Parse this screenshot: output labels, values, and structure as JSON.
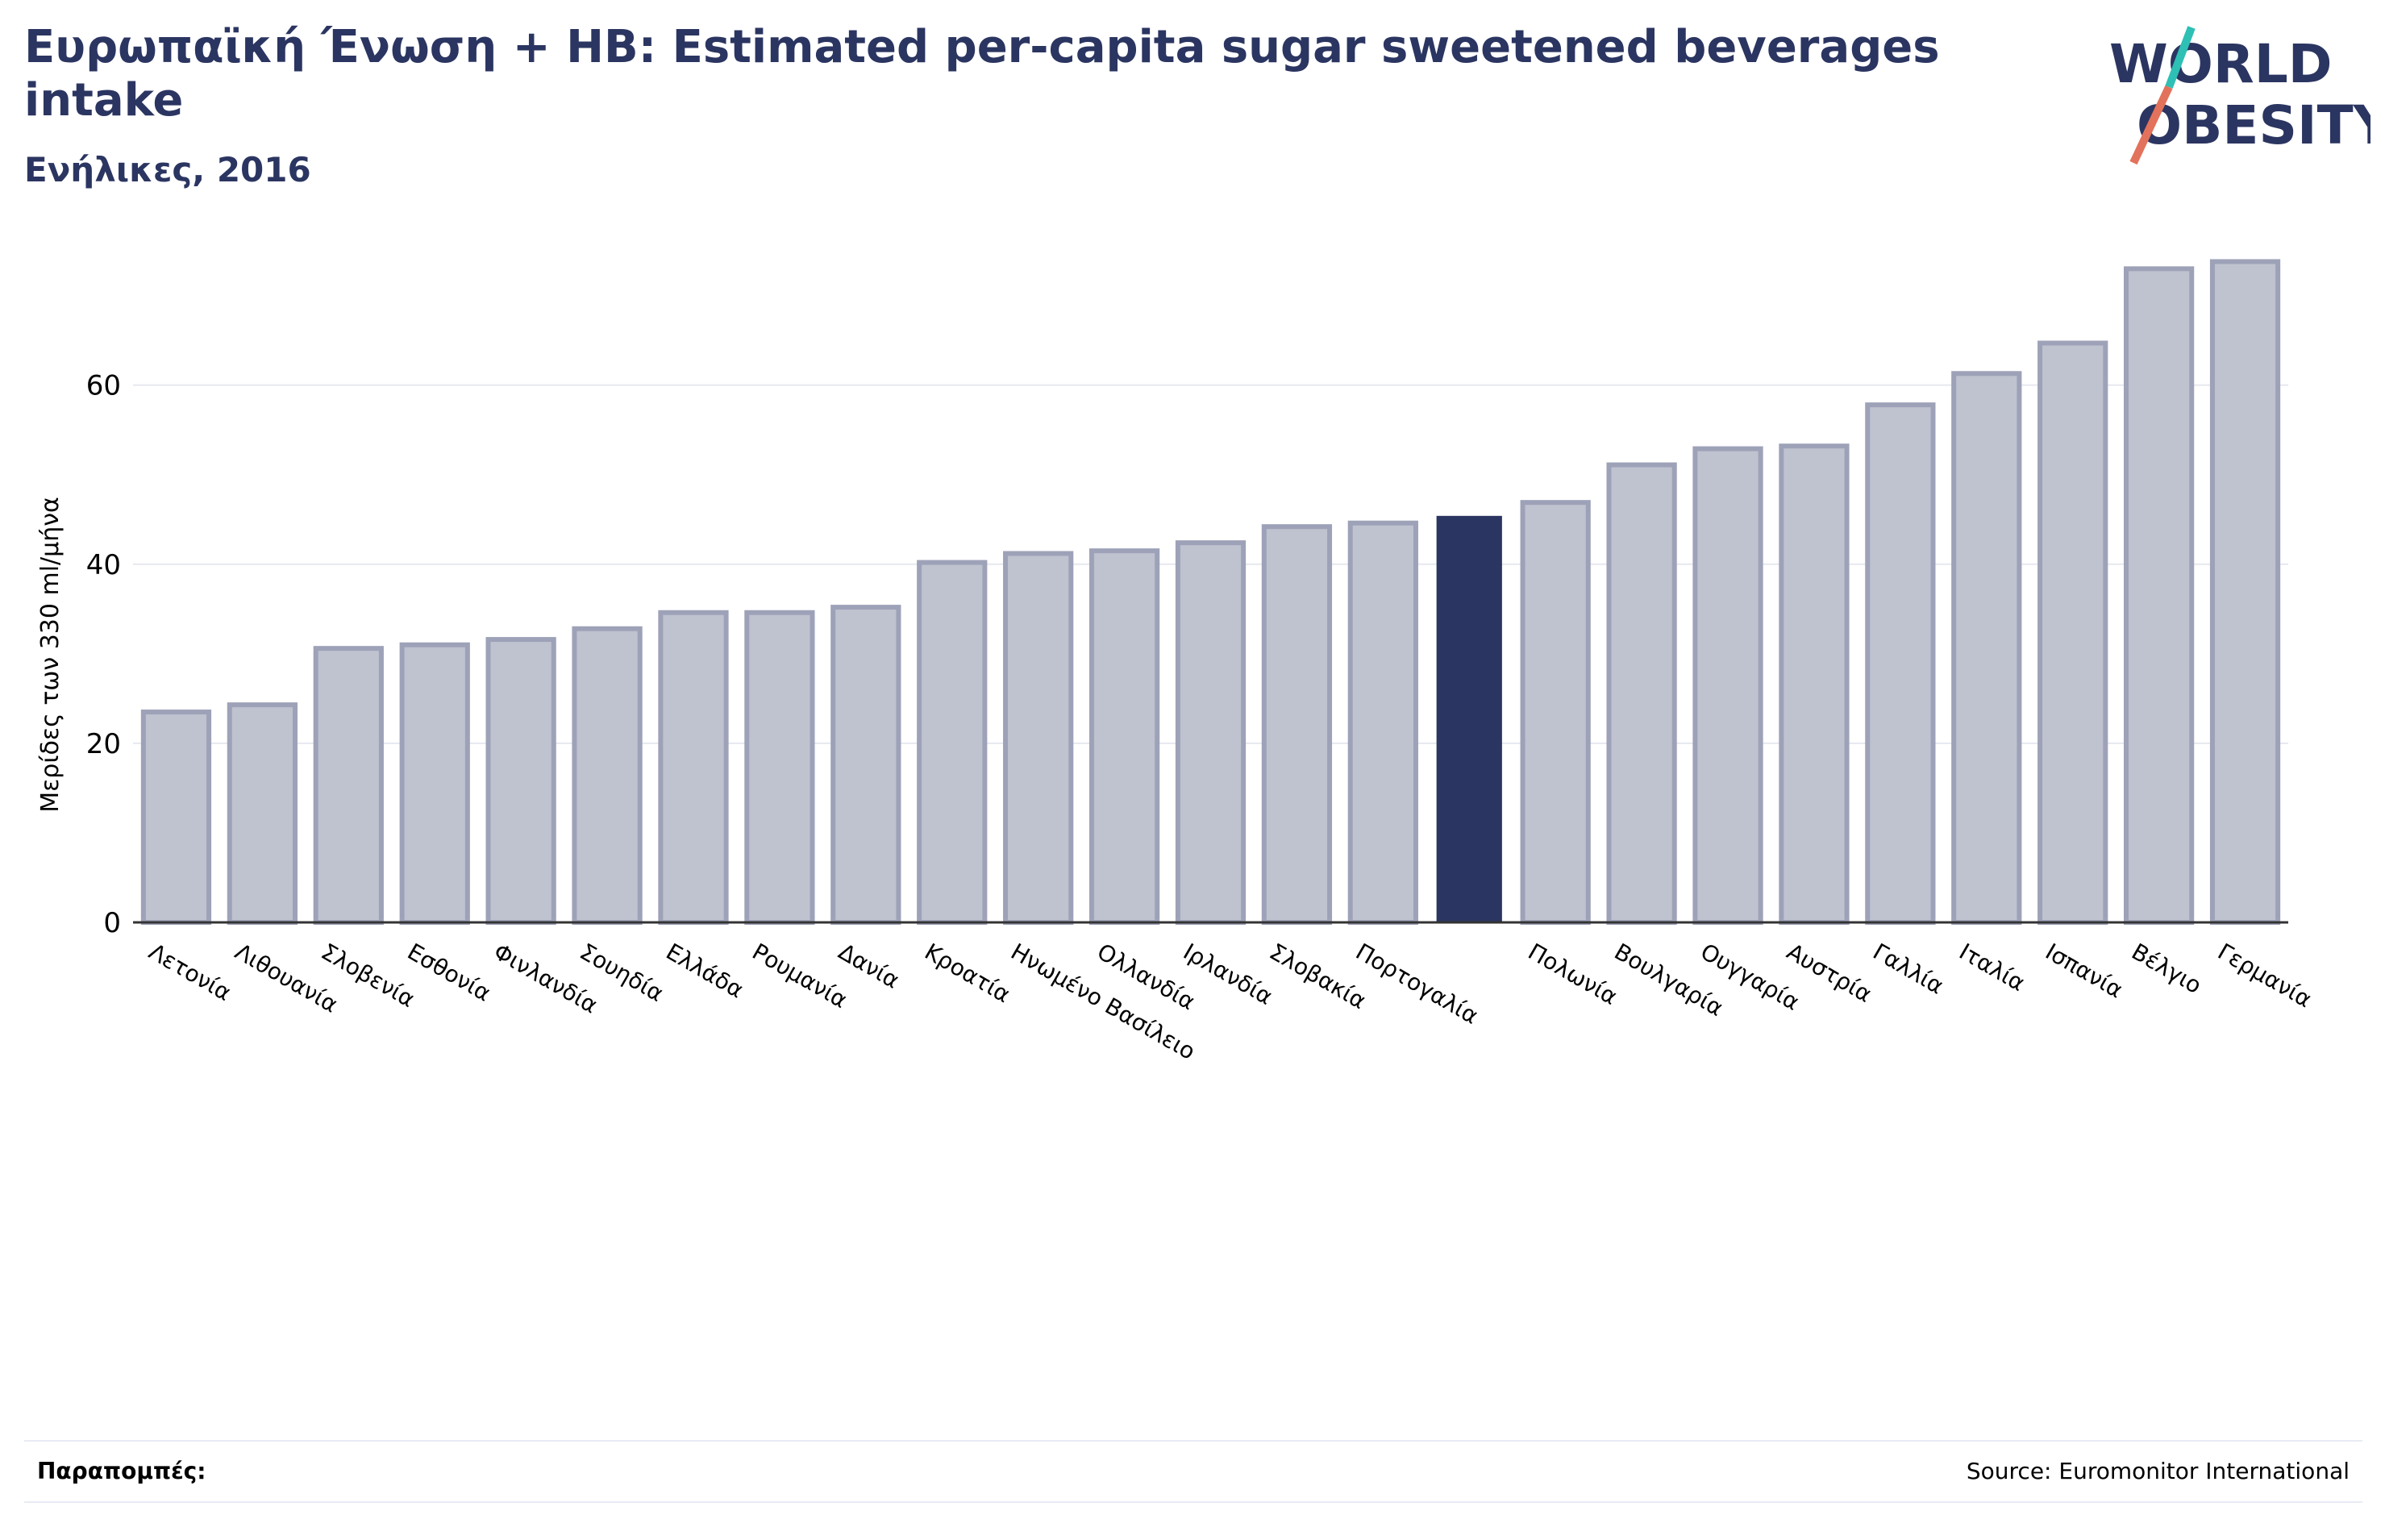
{
  "header": {
    "title": "Ευρωπαϊκή Ένωση + ΗΒ: Estimated per-capita sugar sweetened beverages intake",
    "subtitle": "Ενήλικες, 2016"
  },
  "logo": {
    "line1": "WORLD",
    "line2": "OBESITY",
    "accent_colors": [
      "#2ebfb5",
      "#e2725b"
    ]
  },
  "footer": {
    "notes_label": "Παραπομπές:",
    "source": "Source: Euromonitor International"
  },
  "colors": {
    "bar": "#bfc2cf",
    "bar_stroke": "#9ea2b8",
    "highlight": "#2b3561",
    "text": "#2b3561",
    "grid": "#e6e8ef"
  },
  "chart_data": {
    "type": "bar",
    "ylabel": "Μερίδες των 330 ml/μήνα",
    "xlabel": "",
    "ylim": [
      0,
      76
    ],
    "yticks": [
      0,
      20,
      40,
      60
    ],
    "grid": true,
    "categories": [
      "Λετονία",
      "Λιθουανία",
      "Σλοβενία",
      "Εσθονία",
      "Φινλανδία",
      "Σουηδία",
      "Ελλάδα",
      "Ρουμανία",
      "Δανία",
      "Κροατία",
      "Ηνωμένο Βασίλειο",
      "Ολλανδία",
      "Ιρλανδία",
      "Σλοβακία",
      "Πορτογαλία",
      "",
      "Πολωνία",
      "Βουλγαρία",
      "Ουγγαρία",
      "Αυστρία",
      "Γαλλία",
      "Ιταλία",
      "Ισπανία",
      "Βέλγιο",
      "Γερμανία"
    ],
    "values": [
      23.5,
      24.3,
      30.6,
      31.0,
      31.6,
      32.8,
      34.6,
      34.6,
      35.2,
      40.2,
      41.2,
      41.5,
      42.4,
      44.2,
      44.6,
      45.4,
      46.9,
      51.1,
      52.9,
      53.2,
      57.8,
      61.3,
      64.7,
      73.0,
      73.8
    ],
    "highlight_index": 15
  }
}
